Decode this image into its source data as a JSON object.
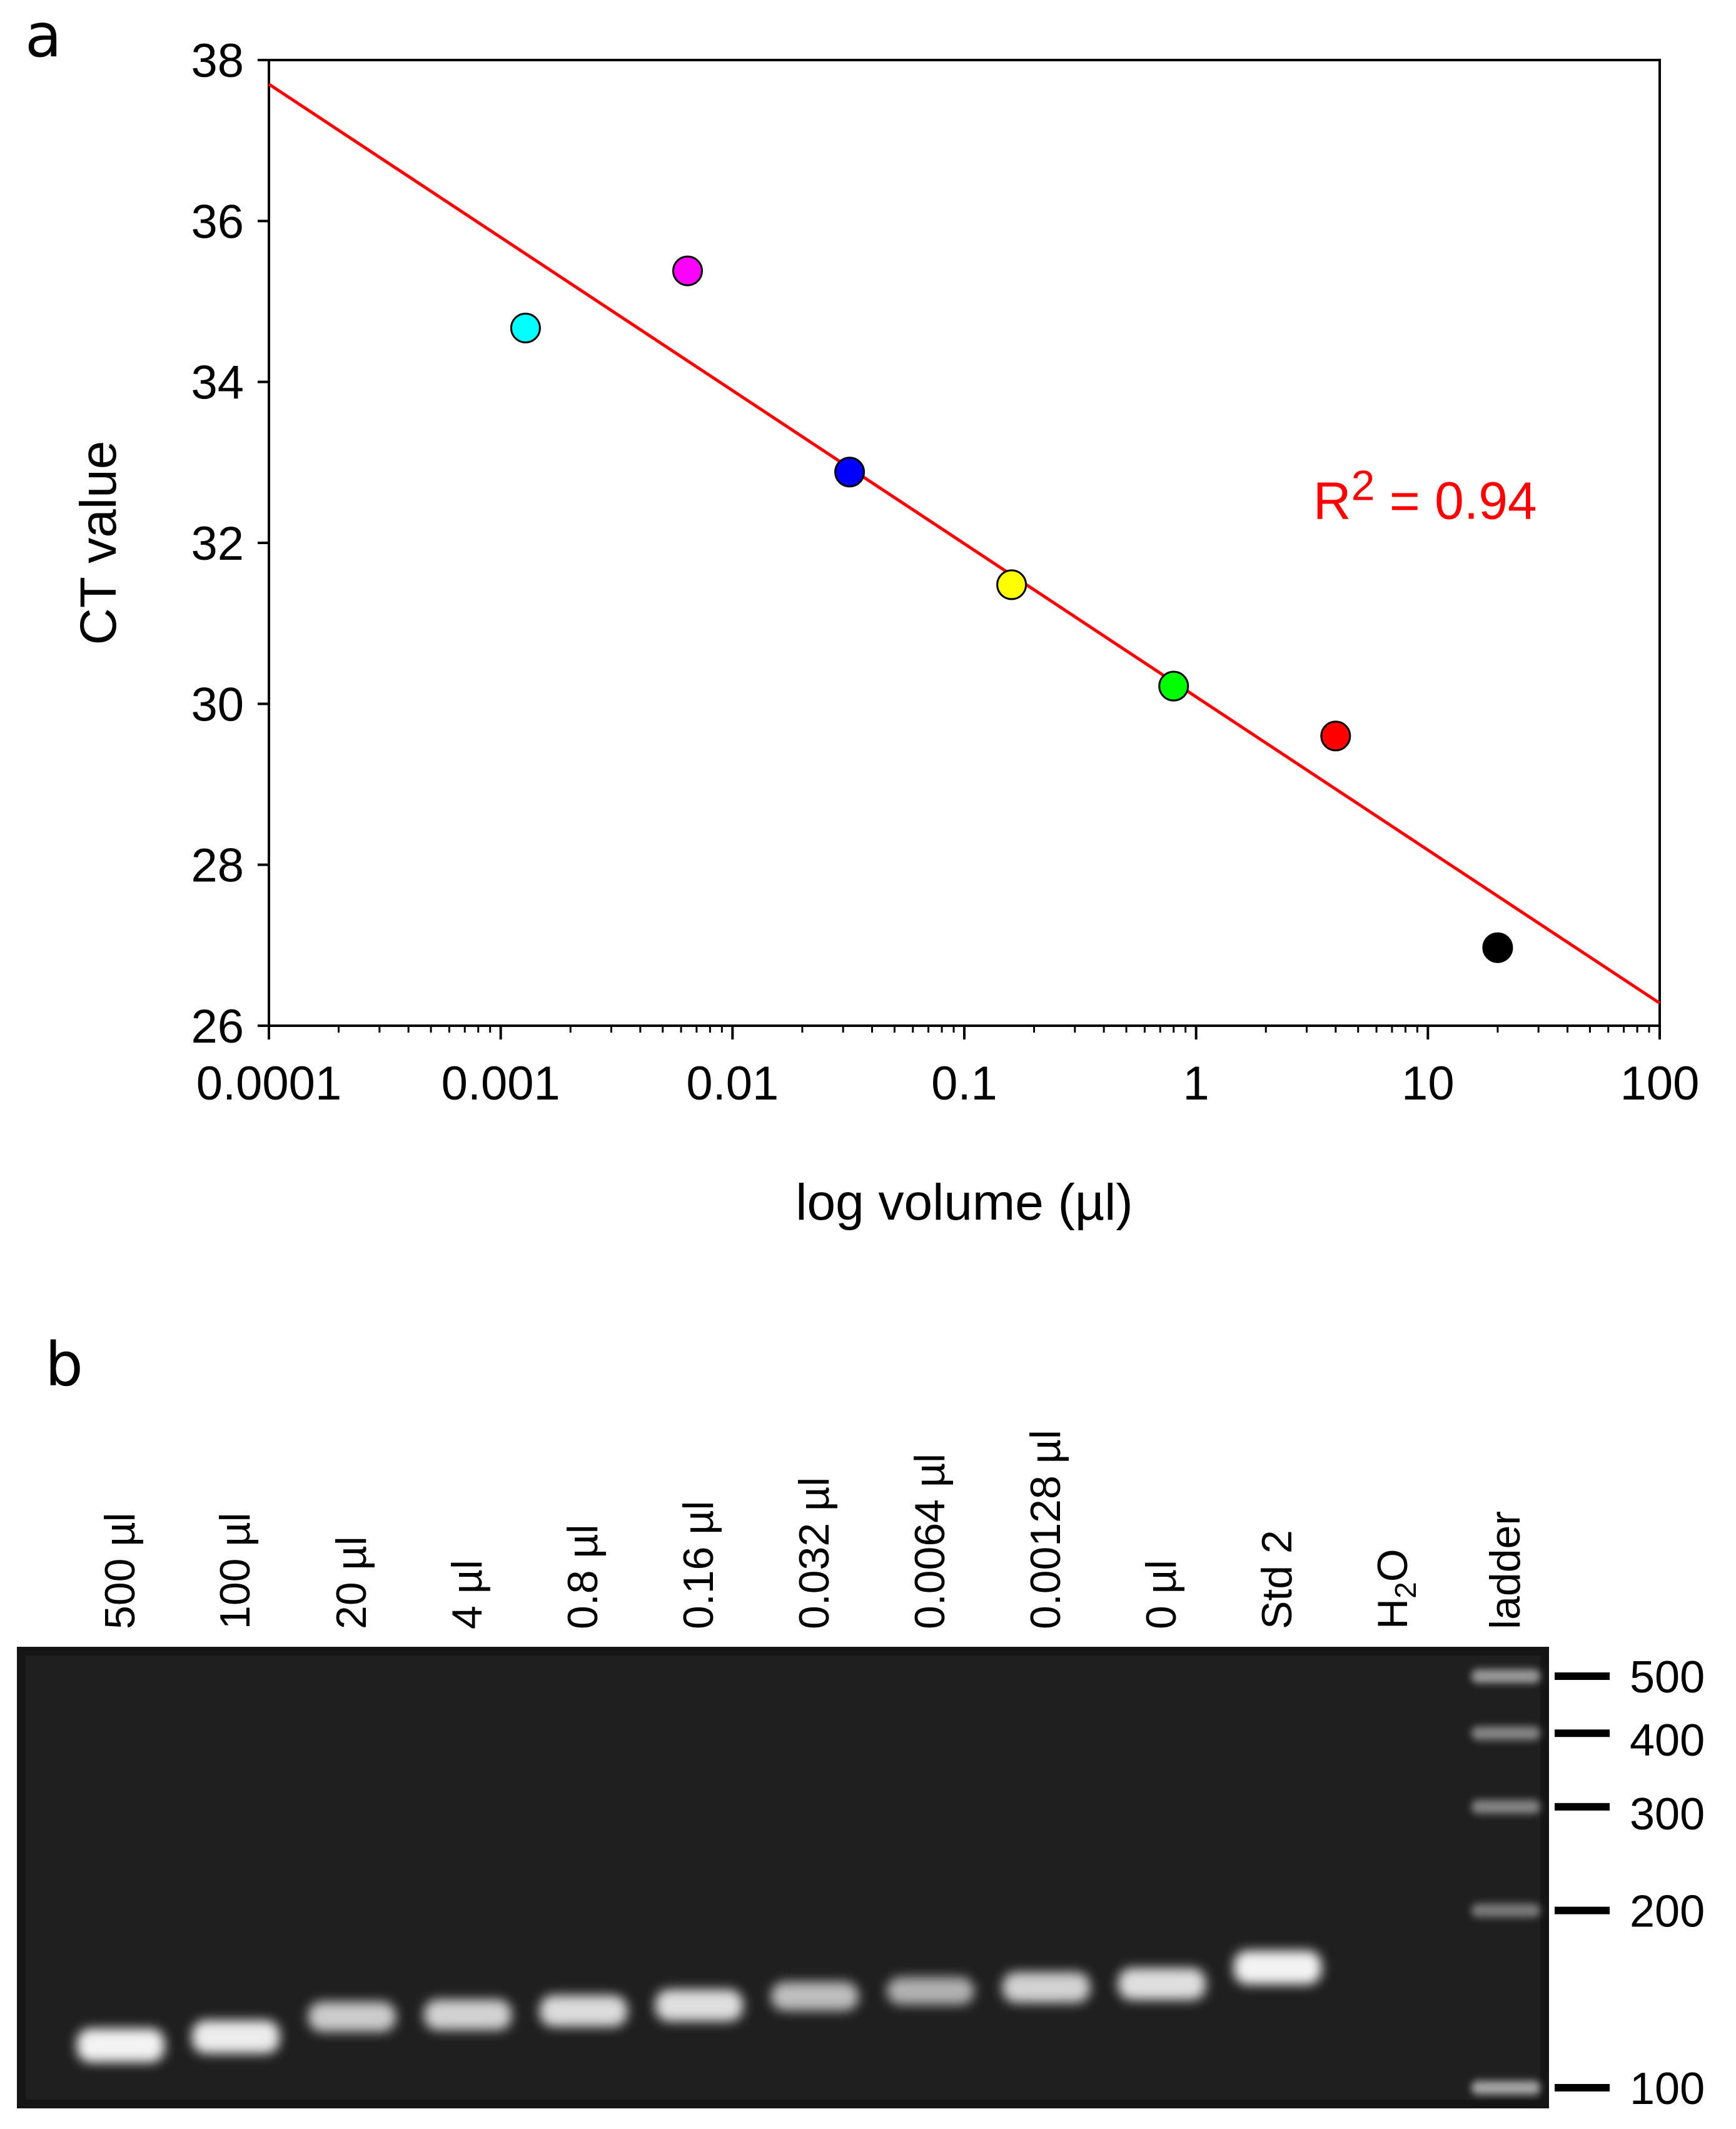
{
  "panel_a_label": "a",
  "panel_b_label": "b",
  "colors": {
    "fit_line": "#ff0000",
    "annotation": "#ff0000",
    "gel_background": "#1e1e1e",
    "band": "#ffffff"
  },
  "chart_data": [
    {
      "type": "scatter",
      "title": "",
      "xlabel": "log volume (µl)",
      "ylabel": "CT value",
      "xscale": "log",
      "xlim": [
        0.0001,
        100
      ],
      "ylim": [
        26,
        38
      ],
      "xticks": [
        0.0001,
        0.001,
        0.01,
        0.1,
        1,
        10,
        100
      ],
      "xtick_labels": [
        "0.0001",
        "0.001",
        "0.01",
        "0.1",
        "1",
        "10",
        "100"
      ],
      "yticks": [
        26,
        28,
        30,
        32,
        34,
        36,
        38
      ],
      "ytick_labels": [
        "26",
        "28",
        "30",
        "32",
        "34",
        "36",
        "38"
      ],
      "grid": false,
      "legend": "none",
      "points": [
        {
          "x": 0.00128,
          "y": 34.67,
          "color": "#00ffff"
        },
        {
          "x": 0.0064,
          "y": 35.38,
          "color": "#ff00ff"
        },
        {
          "x": 0.032,
          "y": 32.88,
          "color": "#0000ff"
        },
        {
          "x": 0.16,
          "y": 31.48,
          "color": "#ffff00"
        },
        {
          "x": 0.8,
          "y": 30.22,
          "color": "#00ff00"
        },
        {
          "x": 4,
          "y": 29.6,
          "color": "#ff0000"
        },
        {
          "x": 20,
          "y": 26.97,
          "color": "#000000"
        }
      ],
      "fit_line": {
        "x": [
          0.0001,
          100
        ],
        "y": [
          37.7,
          26.28
        ],
        "color": "#ff0000"
      },
      "annotation": {
        "prefix": "R",
        "superscript": "2",
        "text": " = 0.94",
        "x": 3.2,
        "y": 32.3
      }
    },
    {
      "type": "gel",
      "title": "",
      "lanes": [
        {
          "label": "500 µl",
          "band_intensity": 1.0
        },
        {
          "label": "100 µl",
          "band_intensity": 0.95
        },
        {
          "label": "20 µl",
          "band_intensity": 0.7
        },
        {
          "label": "4 µl",
          "band_intensity": 0.75
        },
        {
          "label": "0.8 µl",
          "band_intensity": 0.82
        },
        {
          "label": "0.16 µl",
          "band_intensity": 0.85
        },
        {
          "label": "0.032 µl",
          "band_intensity": 0.6
        },
        {
          "label": "0.0064 µl",
          "band_intensity": 0.5
        },
        {
          "label": "0.00128 µl",
          "band_intensity": 0.75
        },
        {
          "label": "0 µl",
          "band_intensity": 0.85
        },
        {
          "label": "Std 2",
          "band_intensity": 1.0
        },
        {
          "label_main": "H",
          "label_sub": "2",
          "label_tail": "O",
          "band_intensity": 0
        },
        {
          "label": "ladder",
          "ladder": true
        }
      ],
      "band_sizes_bp": [
        118,
        122,
        132,
        133,
        135,
        138,
        143,
        146,
        148,
        150,
        160,
        0
      ],
      "ladder_bands_bp": [
        500,
        400,
        300,
        200,
        100
      ],
      "ladder_intensity": [
        0.55,
        0.45,
        0.45,
        0.4,
        0.6
      ],
      "size_markers": [
        "500",
        "400",
        "300",
        "200",
        "100"
      ]
    }
  ]
}
